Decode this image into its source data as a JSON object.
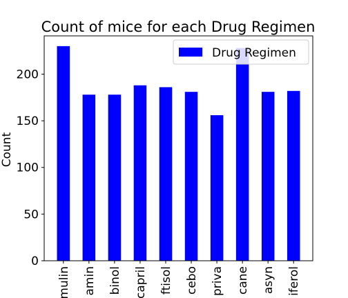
{
  "chart_data": {
    "type": "bar",
    "title": "Count of mice for each Drug Regimen",
    "xlabel": "",
    "ylabel": "Count",
    "categories": [
      "mulin",
      "amin",
      "binol",
      "capril",
      "ftisol",
      "cebo",
      "priva",
      "cane",
      "asyn",
      "iferol"
    ],
    "series": [
      {
        "name": "Drug Regimen",
        "values": [
          230,
          178,
          178,
          188,
          186,
          181,
          156,
          228,
          181,
          182
        ],
        "color": "#0000ff"
      }
    ],
    "ylim": [
      0,
      241
    ],
    "yticks": [
      0,
      50,
      100,
      150,
      200
    ],
    "grid": false,
    "legend_position": "top-right"
  }
}
